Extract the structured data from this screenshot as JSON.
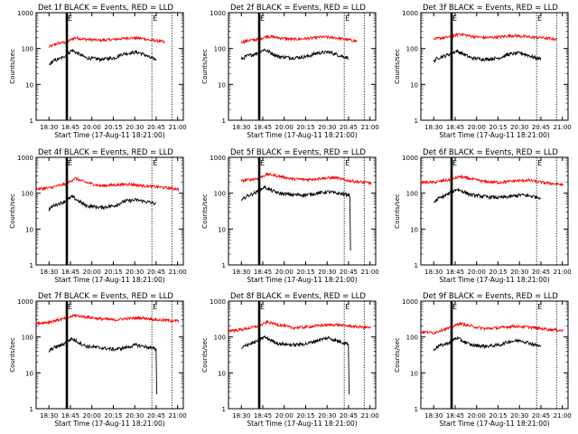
{
  "chart_data": {
    "type": "line",
    "grid_layout": "3x3",
    "xlabel": "Start Time (17-Aug-11 18:21:00)",
    "ylabel": "Counts/sec",
    "x_tick_labels": [
      "18:30",
      "18:45",
      "20:00",
      "20:15",
      "20:30",
      "20:45",
      "21:00"
    ],
    "x_unit": "minutes",
    "x_ticks": [
      9,
      24,
      39,
      54,
      69,
      84,
      99
    ],
    "xlim": [
      0,
      103
    ],
    "y_scale": "log",
    "ylim": [
      1,
      1000
    ],
    "y_tick_labels": [
      "1",
      "10",
      "100",
      "1000"
    ],
    "y_ticks": [
      1,
      10,
      100,
      1000
    ],
    "marker_labels": [
      "E",
      "E"
    ],
    "marker_times": [
      21.5,
      81
    ],
    "marker_styles": [
      "solid-thick",
      "dotted"
    ],
    "extra_dotted_time": 95,
    "series_colors": {
      "events": "#000000",
      "lld": "#ff0000"
    },
    "panels": [
      {
        "title": "Det 1f BLACK = Events, RED = LLD",
        "lld_points": [
          [
            9,
            110
          ],
          [
            15,
            140
          ],
          [
            21,
            150
          ],
          [
            27,
            200
          ],
          [
            35,
            180
          ],
          [
            45,
            170
          ],
          [
            55,
            180
          ],
          [
            65,
            200
          ],
          [
            75,
            190
          ],
          [
            80,
            170
          ],
          [
            85,
            165
          ],
          [
            90,
            150
          ]
        ],
        "events_points": [
          [
            9,
            35
          ],
          [
            12,
            45
          ],
          [
            18,
            55
          ],
          [
            22,
            70
          ],
          [
            25,
            90
          ],
          [
            30,
            70
          ],
          [
            35,
            55
          ],
          [
            45,
            50
          ],
          [
            55,
            55
          ],
          [
            60,
            70
          ],
          [
            70,
            80
          ],
          [
            75,
            70
          ],
          [
            80,
            55
          ],
          [
            84,
            50
          ]
        ],
        "events_start": 9,
        "events_end": 84,
        "drop_end": false,
        "events_cut": null
      },
      {
        "title": "Det 2f BLACK = Events, RED = LLD",
        "lld_points": [
          [
            9,
            150
          ],
          [
            15,
            170
          ],
          [
            21,
            180
          ],
          [
            27,
            220
          ],
          [
            35,
            200
          ],
          [
            45,
            180
          ],
          [
            55,
            190
          ],
          [
            65,
            210
          ],
          [
            75,
            200
          ],
          [
            82,
            180
          ],
          [
            90,
            160
          ]
        ],
        "events_points": [
          [
            9,
            50
          ],
          [
            12,
            60
          ],
          [
            18,
            70
          ],
          [
            22,
            80
          ],
          [
            25,
            95
          ],
          [
            30,
            75
          ],
          [
            35,
            60
          ],
          [
            45,
            55
          ],
          [
            55,
            60
          ],
          [
            62,
            75
          ],
          [
            70,
            80
          ],
          [
            75,
            70
          ],
          [
            80,
            60
          ],
          [
            84,
            55
          ]
        ],
        "events_start": 9,
        "events_end": 84,
        "drop_end": false,
        "events_cut": null
      },
      {
        "title": "Det 3f BLACK = Events, RED = LLD",
        "lld_points": [
          [
            9,
            180
          ],
          [
            15,
            200
          ],
          [
            21,
            210
          ],
          [
            27,
            260
          ],
          [
            35,
            220
          ],
          [
            45,
            200
          ],
          [
            55,
            210
          ],
          [
            65,
            230
          ],
          [
            75,
            210
          ],
          [
            85,
            200
          ],
          [
            95,
            180
          ]
        ],
        "events_points": [
          [
            9,
            45
          ],
          [
            12,
            55
          ],
          [
            18,
            65
          ],
          [
            22,
            75
          ],
          [
            25,
            85
          ],
          [
            30,
            70
          ],
          [
            35,
            55
          ],
          [
            45,
            50
          ],
          [
            55,
            55
          ],
          [
            62,
            70
          ],
          [
            70,
            75
          ],
          [
            75,
            65
          ],
          [
            80,
            55
          ],
          [
            84,
            52
          ]
        ],
        "events_start": 9,
        "events_end": 84,
        "drop_end": false,
        "events_cut": null
      },
      {
        "title": "Det 4f BLACK = Events, RED = LLD",
        "lld_points": [
          [
            0,
            130
          ],
          [
            9,
            140
          ],
          [
            15,
            160
          ],
          [
            21,
            180
          ],
          [
            27,
            260
          ],
          [
            35,
            200
          ],
          [
            45,
            160
          ],
          [
            55,
            170
          ],
          [
            65,
            180
          ],
          [
            75,
            160
          ],
          [
            85,
            150
          ],
          [
            100,
            130
          ]
        ],
        "events_points": [
          [
            9,
            35
          ],
          [
            12,
            45
          ],
          [
            18,
            55
          ],
          [
            22,
            65
          ],
          [
            25,
            80
          ],
          [
            30,
            60
          ],
          [
            35,
            45
          ],
          [
            45,
            40
          ],
          [
            55,
            45
          ],
          [
            62,
            60
          ],
          [
            70,
            65
          ],
          [
            75,
            60
          ],
          [
            80,
            55
          ],
          [
            84,
            50
          ]
        ],
        "events_start": 9,
        "events_end": 84,
        "drop_end": false,
        "events_cut": null
      },
      {
        "title": "Det 5f BLACK = Events, RED = LLD",
        "lld_points": [
          [
            9,
            220
          ],
          [
            15,
            240
          ],
          [
            21,
            260
          ],
          [
            27,
            340
          ],
          [
            35,
            300
          ],
          [
            45,
            250
          ],
          [
            55,
            240
          ],
          [
            65,
            260
          ],
          [
            75,
            270
          ],
          [
            82,
            230
          ],
          [
            90,
            210
          ],
          [
            100,
            190
          ]
        ],
        "events_points": [
          [
            9,
            60
          ],
          [
            12,
            80
          ],
          [
            18,
            100
          ],
          [
            22,
            120
          ],
          [
            25,
            150
          ],
          [
            30,
            120
          ],
          [
            35,
            100
          ],
          [
            45,
            90
          ],
          [
            55,
            90
          ],
          [
            62,
            100
          ],
          [
            70,
            110
          ],
          [
            75,
            100
          ],
          [
            80,
            95
          ],
          [
            85,
            90
          ]
        ],
        "events_start": 9,
        "events_end": 85,
        "drop_end": true,
        "events_cut": null
      },
      {
        "title": "Det 6f BLACK = Events, RED = LLD",
        "lld_points": [
          [
            0,
            200
          ],
          [
            9,
            200
          ],
          [
            15,
            220
          ],
          [
            21,
            240
          ],
          [
            27,
            290
          ],
          [
            35,
            250
          ],
          [
            45,
            210
          ],
          [
            55,
            200
          ],
          [
            65,
            220
          ],
          [
            75,
            230
          ],
          [
            85,
            200
          ],
          [
            100,
            170
          ]
        ],
        "events_points": [
          [
            9,
            55
          ],
          [
            12,
            70
          ],
          [
            18,
            90
          ],
          [
            22,
            110
          ],
          [
            25,
            130
          ],
          [
            30,
            110
          ],
          [
            35,
            90
          ],
          [
            45,
            80
          ],
          [
            55,
            75
          ],
          [
            62,
            80
          ],
          [
            70,
            90
          ],
          [
            75,
            85
          ],
          [
            80,
            80
          ],
          [
            84,
            75
          ]
        ],
        "events_start": 9,
        "events_end": 84,
        "drop_end": false,
        "events_cut": 84
      },
      {
        "title": "Det 7f BLACK = Events, RED = LLD",
        "lld_points": [
          [
            0,
            240
          ],
          [
            9,
            260
          ],
          [
            15,
            300
          ],
          [
            21,
            330
          ],
          [
            27,
            400
          ],
          [
            35,
            360
          ],
          [
            45,
            320
          ],
          [
            55,
            300
          ],
          [
            65,
            330
          ],
          [
            75,
            340
          ],
          [
            85,
            300
          ],
          [
            100,
            280
          ]
        ],
        "events_points": [
          [
            9,
            40
          ],
          [
            12,
            50
          ],
          [
            18,
            60
          ],
          [
            22,
            75
          ],
          [
            25,
            90
          ],
          [
            30,
            70
          ],
          [
            35,
            55
          ],
          [
            45,
            50
          ],
          [
            55,
            45
          ],
          [
            62,
            50
          ],
          [
            70,
            60
          ],
          [
            75,
            55
          ],
          [
            80,
            50
          ],
          [
            84,
            45
          ]
        ],
        "events_start": 9,
        "events_end": 84,
        "drop_end": true,
        "events_cut": null
      },
      {
        "title": "Det 8f BLACK = Events, RED = LLD",
        "lld_points": [
          [
            0,
            150
          ],
          [
            9,
            160
          ],
          [
            15,
            180
          ],
          [
            21,
            200
          ],
          [
            27,
            260
          ],
          [
            35,
            220
          ],
          [
            45,
            180
          ],
          [
            55,
            190
          ],
          [
            65,
            210
          ],
          [
            75,
            220
          ],
          [
            85,
            200
          ],
          [
            100,
            180
          ]
        ],
        "events_points": [
          [
            9,
            45
          ],
          [
            12,
            60
          ],
          [
            18,
            70
          ],
          [
            22,
            85
          ],
          [
            25,
            100
          ],
          [
            30,
            80
          ],
          [
            35,
            65
          ],
          [
            45,
            60
          ],
          [
            55,
            65
          ],
          [
            62,
            80
          ],
          [
            70,
            95
          ],
          [
            75,
            80
          ],
          [
            80,
            70
          ],
          [
            84,
            65
          ]
        ],
        "events_start": 9,
        "events_end": 84,
        "drop_end": true,
        "events_cut": null
      },
      {
        "title": "Det 9f BLACK = Events, RED = LLD",
        "lld_points": [
          [
            0,
            140
          ],
          [
            9,
            130
          ],
          [
            15,
            160
          ],
          [
            21,
            180
          ],
          [
            27,
            240
          ],
          [
            35,
            200
          ],
          [
            45,
            170
          ],
          [
            55,
            180
          ],
          [
            65,
            200
          ],
          [
            75,
            190
          ],
          [
            85,
            170
          ],
          [
            100,
            150
          ]
        ],
        "events_points": [
          [
            9,
            45
          ],
          [
            12,
            55
          ],
          [
            18,
            65
          ],
          [
            22,
            80
          ],
          [
            25,
            95
          ],
          [
            30,
            75
          ],
          [
            35,
            60
          ],
          [
            45,
            55
          ],
          [
            55,
            60
          ],
          [
            62,
            75
          ],
          [
            70,
            80
          ],
          [
            75,
            70
          ],
          [
            80,
            60
          ],
          [
            84,
            55
          ]
        ],
        "events_start": 9,
        "events_end": 84,
        "drop_end": false,
        "events_cut": null
      }
    ]
  }
}
